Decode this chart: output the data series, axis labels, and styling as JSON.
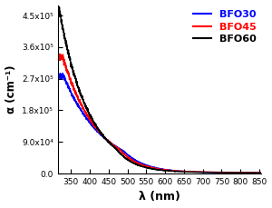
{
  "title": "",
  "xlabel": "λ (nm)",
  "ylabel": "α (cm⁻¹)",
  "xlim": [
    315,
    855
  ],
  "ylim": [
    0,
    480000.0
  ],
  "yticks": [
    0,
    90000.0,
    180000.0,
    270000.0,
    360000.0,
    450000.0
  ],
  "ytick_labels": [
    "0.0",
    "9.0x10⁴",
    "1.8x10⁵",
    "2.7x10⁵",
    "3.6x10⁵",
    "4.5x10⁵"
  ],
  "xticks": [
    350,
    400,
    450,
    500,
    550,
    600,
    650,
    700,
    750,
    800,
    850
  ],
  "legend": [
    "BFO30",
    "BFO45",
    "BFO60"
  ],
  "colors": [
    "blue",
    "red",
    "black"
  ],
  "background": "#ffffff",
  "figsize": [
    3.0,
    2.29
  ],
  "dpi": 100
}
